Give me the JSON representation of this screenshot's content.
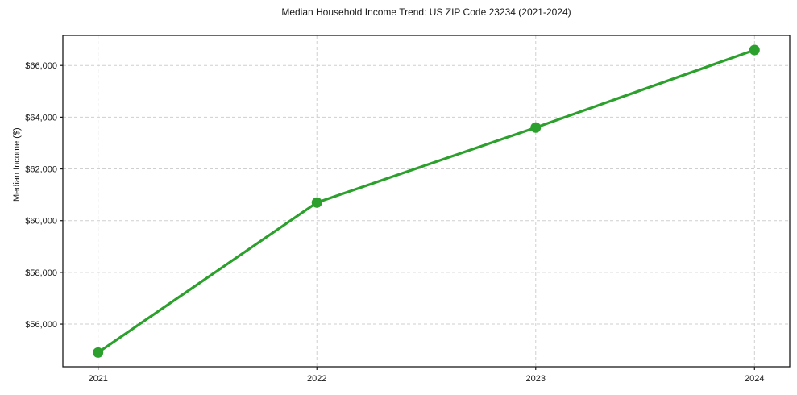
{
  "chart_data": {
    "type": "line",
    "title": "Median Household Income Trend: US ZIP Code 23234 (2021-2024)",
    "xlabel": "",
    "ylabel": "Median Income ($)",
    "categories": [
      "2021",
      "2022",
      "2023",
      "2024"
    ],
    "series": [
      {
        "name": "Median Household Income",
        "values": [
          54900,
          60700,
          63600,
          66600
        ]
      }
    ],
    "ytick_values": [
      56000,
      58000,
      60000,
      62000,
      64000,
      66000
    ],
    "ytick_labels": [
      "$56,000",
      "$58,000",
      "$60,000",
      "$62,000",
      "$64,000",
      "$66,000"
    ],
    "ylim": [
      54350,
      67160
    ],
    "grid": true,
    "grid_style": "dashed",
    "legend_position": "none",
    "line_color": "#2ca02c",
    "marker_color": "#2ca02c",
    "grid_color": "#cfcfcf",
    "axis_color": "#1a1a1a",
    "background_color": "#ffffff"
  }
}
